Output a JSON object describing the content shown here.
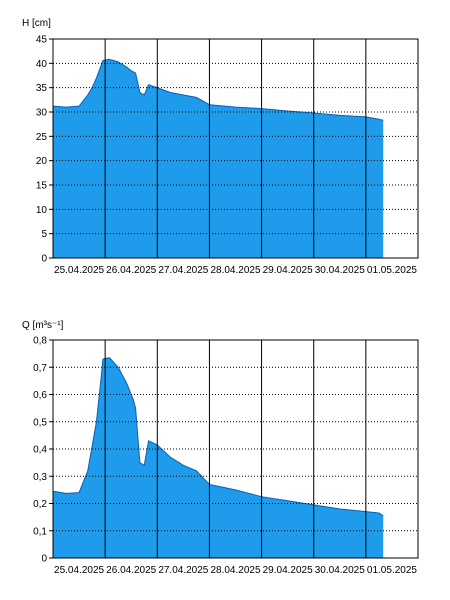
{
  "colors": {
    "fill": "#1E9BEA",
    "outline": "#0B5FB0",
    "axis": "#000000",
    "grid": "#000000"
  },
  "chart_data": [
    {
      "type": "area",
      "ylabel": "H [cm]",
      "ylim": [
        0,
        45
      ],
      "yticks": [
        "0",
        "5",
        "10",
        "15",
        "20",
        "25",
        "30",
        "35",
        "40",
        "45"
      ],
      "xlim": [
        "2025-04-25T00:00",
        "2025-05-02T00:00"
      ],
      "xtick_labels": [
        "25.04.2025",
        "26.04.2025",
        "27.04.2025",
        "28.04.2025",
        "29.04.2025",
        "30.04.2025",
        "01.05.2025"
      ],
      "xtick_dates": [
        "2025-04-25T12:00",
        "2025-04-26T12:00",
        "2025-04-27T12:00",
        "2025-04-28T12:00",
        "2025-04-29T12:00",
        "2025-04-30T12:00",
        "2025-05-01T12:00"
      ],
      "grid_vertical_dates": [
        "2025-04-26T00:00",
        "2025-04-27T00:00",
        "2025-04-28T00:00",
        "2025-04-29T00:00",
        "2025-04-30T00:00",
        "2025-05-01T00:00"
      ],
      "x": [
        "2025-04-25T00:00",
        "2025-04-25T06:00",
        "2025-04-25T12:00",
        "2025-04-25T16:00",
        "2025-04-25T18:00",
        "2025-04-25T20:00",
        "2025-04-25T23:00",
        "2025-04-26T02:00",
        "2025-04-26T06:00",
        "2025-04-26T10:00",
        "2025-04-26T12:00",
        "2025-04-26T14:00",
        "2025-04-26T16:00",
        "2025-04-26T18:00",
        "2025-04-26T20:00",
        "2025-04-27T00:00",
        "2025-04-27T06:00",
        "2025-04-27T12:00",
        "2025-04-27T18:00",
        "2025-04-28T00:00",
        "2025-04-28T12:00",
        "2025-04-29T00:00",
        "2025-04-29T12:00",
        "2025-04-30T00:00",
        "2025-04-30T12:00",
        "2025-05-01T00:00",
        "2025-05-01T06:00",
        "2025-05-01T08:00"
      ],
      "values": [
        31.2,
        31.0,
        31.2,
        33.5,
        35.0,
        37.0,
        40.6,
        40.8,
        40.3,
        39.2,
        38.5,
        38.0,
        34.0,
        33.5,
        35.6,
        35.0,
        34.0,
        33.5,
        33.0,
        31.5,
        31.0,
        30.7,
        30.2,
        29.8,
        29.3,
        29.0,
        28.5,
        28.3
      ]
    },
    {
      "type": "area",
      "ylabel": "Q [m³s⁻¹]",
      "ylim": [
        0,
        0.8
      ],
      "yticks": [
        "0",
        "0,1",
        "0,2",
        "0,3",
        "0,4",
        "0,5",
        "0,6",
        "0,7",
        "0,8"
      ],
      "xlim": [
        "2025-04-25T00:00",
        "2025-05-02T00:00"
      ],
      "xtick_labels": [
        "25.04.2025",
        "26.04.2025",
        "27.04.2025",
        "28.04.2025",
        "29.04.2025",
        "30.04.2025",
        "01.05.2025"
      ],
      "xtick_dates": [
        "2025-04-25T12:00",
        "2025-04-26T12:00",
        "2025-04-27T12:00",
        "2025-04-28T12:00",
        "2025-04-29T12:00",
        "2025-04-30T12:00",
        "2025-05-01T12:00"
      ],
      "grid_vertical_dates": [
        "2025-04-26T00:00",
        "2025-04-27T00:00",
        "2025-04-28T00:00",
        "2025-04-29T00:00",
        "2025-04-30T00:00",
        "2025-05-01T00:00"
      ],
      "x": [
        "2025-04-25T00:00",
        "2025-04-25T06:00",
        "2025-04-25T12:00",
        "2025-04-25T16:00",
        "2025-04-25T20:00",
        "2025-04-25T22:00",
        "2025-04-25T23:00",
        "2025-04-26T02:00",
        "2025-04-26T06:00",
        "2025-04-26T10:00",
        "2025-04-26T13:00",
        "2025-04-26T14:00",
        "2025-04-26T16:00",
        "2025-04-26T18:00",
        "2025-04-26T20:00",
        "2025-04-27T00:00",
        "2025-04-27T06:00",
        "2025-04-27T12:00",
        "2025-04-27T18:00",
        "2025-04-28T00:00",
        "2025-04-28T12:00",
        "2025-04-29T00:00",
        "2025-04-29T12:00",
        "2025-04-30T00:00",
        "2025-04-30T12:00",
        "2025-05-01T00:00",
        "2025-05-01T06:00",
        "2025-05-01T08:00"
      ],
      "values": [
        0.245,
        0.237,
        0.24,
        0.32,
        0.5,
        0.65,
        0.73,
        0.735,
        0.7,
        0.64,
        0.58,
        0.55,
        0.35,
        0.34,
        0.43,
        0.415,
        0.37,
        0.34,
        0.32,
        0.27,
        0.25,
        0.225,
        0.21,
        0.195,
        0.18,
        0.17,
        0.165,
        0.155
      ]
    }
  ]
}
